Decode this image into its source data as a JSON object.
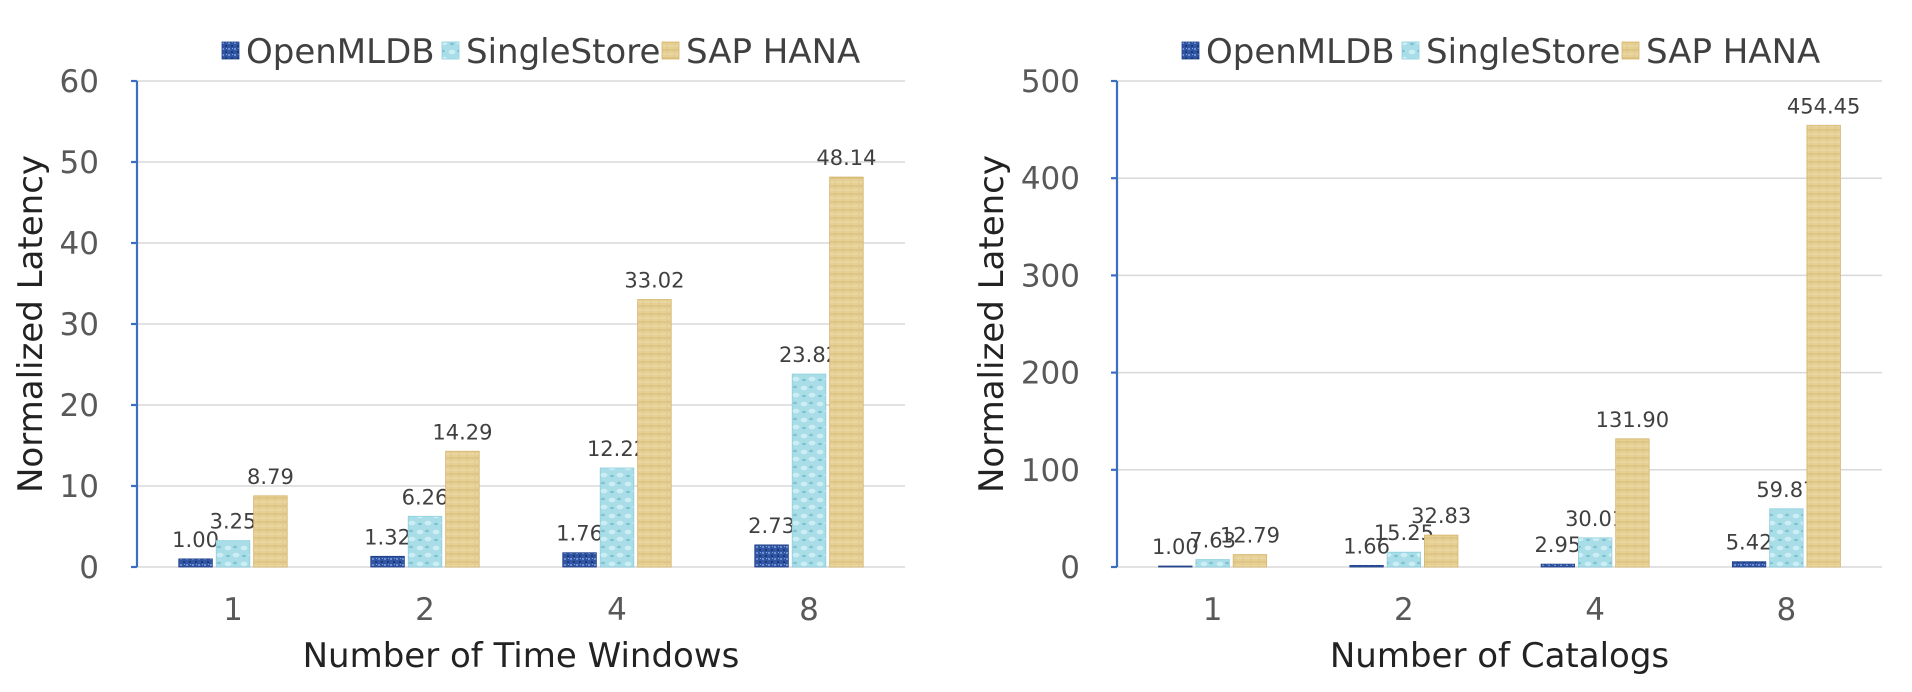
{
  "colors": {
    "OpenMLDB": "#2f55a3",
    "SingleStore": "#a9dde8",
    "SAP HANA": "#e6cf93"
  },
  "chart_data": [
    {
      "type": "bar",
      "title": "",
      "xlabel": "Number of Time Windows",
      "ylabel": "Normalized Latency",
      "categories": [
        "1",
        "2",
        "4",
        "8"
      ],
      "ylim": [
        0,
        60
      ],
      "yticks": [
        0,
        10,
        20,
        30,
        40,
        50,
        60
      ],
      "grid": true,
      "legend_position": "top",
      "series": [
        {
          "name": "OpenMLDB",
          "values": [
            1.0,
            1.32,
            1.76,
            2.73
          ],
          "labels": [
            "1.00",
            "1.32",
            "1.76",
            "2.73"
          ]
        },
        {
          "name": "SingleStore",
          "values": [
            3.25,
            6.26,
            12.22,
            23.82
          ],
          "labels": [
            "3.25",
            "6.26",
            "12.22",
            "23.82"
          ]
        },
        {
          "name": "SAP HANA",
          "values": [
            8.79,
            14.29,
            33.02,
            48.14
          ],
          "labels": [
            "8.79",
            "14.29",
            "33.02",
            "48.14"
          ]
        }
      ]
    },
    {
      "type": "bar",
      "title": "",
      "xlabel": "Number of Catalogs",
      "ylabel": "Normalized Latency",
      "categories": [
        "1",
        "2",
        "4",
        "8"
      ],
      "ylim": [
        0,
        500
      ],
      "yticks": [
        0,
        100,
        200,
        300,
        400,
        500
      ],
      "grid": true,
      "legend_position": "top",
      "series": [
        {
          "name": "OpenMLDB",
          "values": [
            1.0,
            1.66,
            2.95,
            5.42
          ],
          "labels": [
            "1.00",
            "1.66",
            "2.95",
            "5.42"
          ]
        },
        {
          "name": "SingleStore",
          "values": [
            7.63,
            15.25,
            30.01,
            59.87
          ],
          "labels": [
            "7.63",
            "15.25",
            "30.01",
            "59.87"
          ]
        },
        {
          "name": "SAP HANA",
          "values": [
            12.79,
            32.83,
            131.9,
            454.45
          ],
          "labels": [
            "12.79",
            "32.83",
            "131.90",
            "454.45"
          ]
        }
      ]
    }
  ]
}
